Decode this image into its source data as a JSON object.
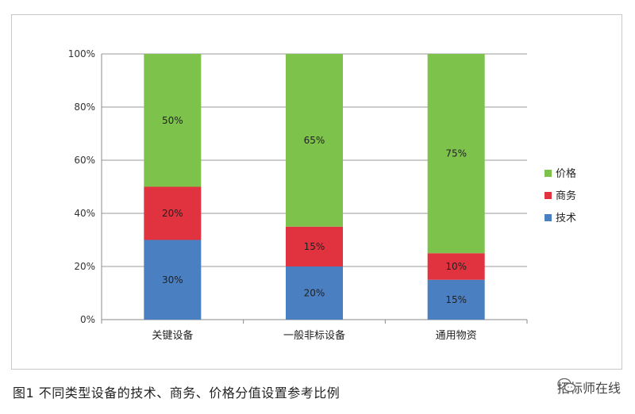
{
  "chart_data": {
    "type": "bar",
    "stacked": true,
    "categories": [
      "关键设备",
      "一般非标设备",
      "通用物资"
    ],
    "series": [
      {
        "name": "技术",
        "values": [
          30,
          20,
          15
        ],
        "color": "#4a7fc1"
      },
      {
        "name": "商务",
        "values": [
          20,
          15,
          10
        ],
        "color": "#e1323f"
      },
      {
        "name": "价格",
        "values": [
          50,
          65,
          75
        ],
        "color": "#7dc24b"
      }
    ],
    "ylim": [
      0,
      100
    ],
    "yticks": [
      0,
      20,
      40,
      60,
      80,
      100
    ],
    "ytick_labels": [
      "0%",
      "20%",
      "40%",
      "60%",
      "80%",
      "100%"
    ],
    "value_suffix": "%",
    "grid": true,
    "legend_position": "right",
    "legend_order": [
      "价格",
      "商务",
      "技术"
    ]
  },
  "caption": "图1   不同类型设备的技术、商务、价格分值设置参考比例",
  "watermark": {
    "text": "招标师在线",
    "icon": "wechat-icon"
  }
}
